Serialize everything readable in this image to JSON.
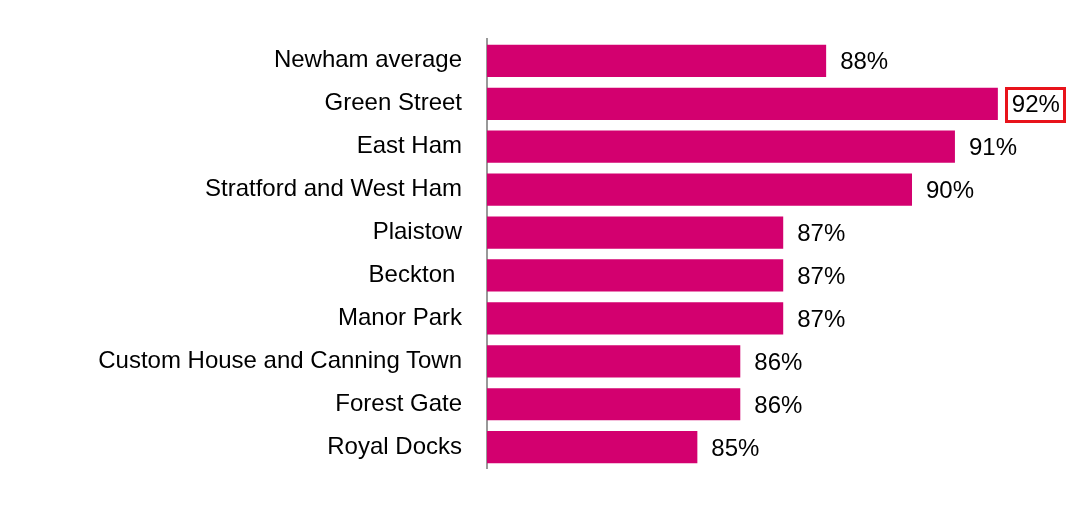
{
  "chart_data": {
    "type": "bar",
    "orientation": "horizontal",
    "categories": [
      "Newham average",
      "Green Street",
      "East Ham",
      "Stratford and West Ham",
      "Plaistow",
      "Beckton ",
      "Manor Park",
      "Custom House and Canning Town",
      "Forest Gate",
      "Royal Docks"
    ],
    "values": [
      88,
      92,
      91,
      90,
      87,
      87,
      87,
      86,
      86,
      85
    ],
    "value_labels": [
      "88%",
      "92%",
      "91%",
      "90%",
      "87%",
      "87%",
      "87%",
      "86%",
      "86%",
      "85%"
    ],
    "color": "#d3006f",
    "tick_labels": "y",
    "grid": false,
    "legend": false
  }
}
